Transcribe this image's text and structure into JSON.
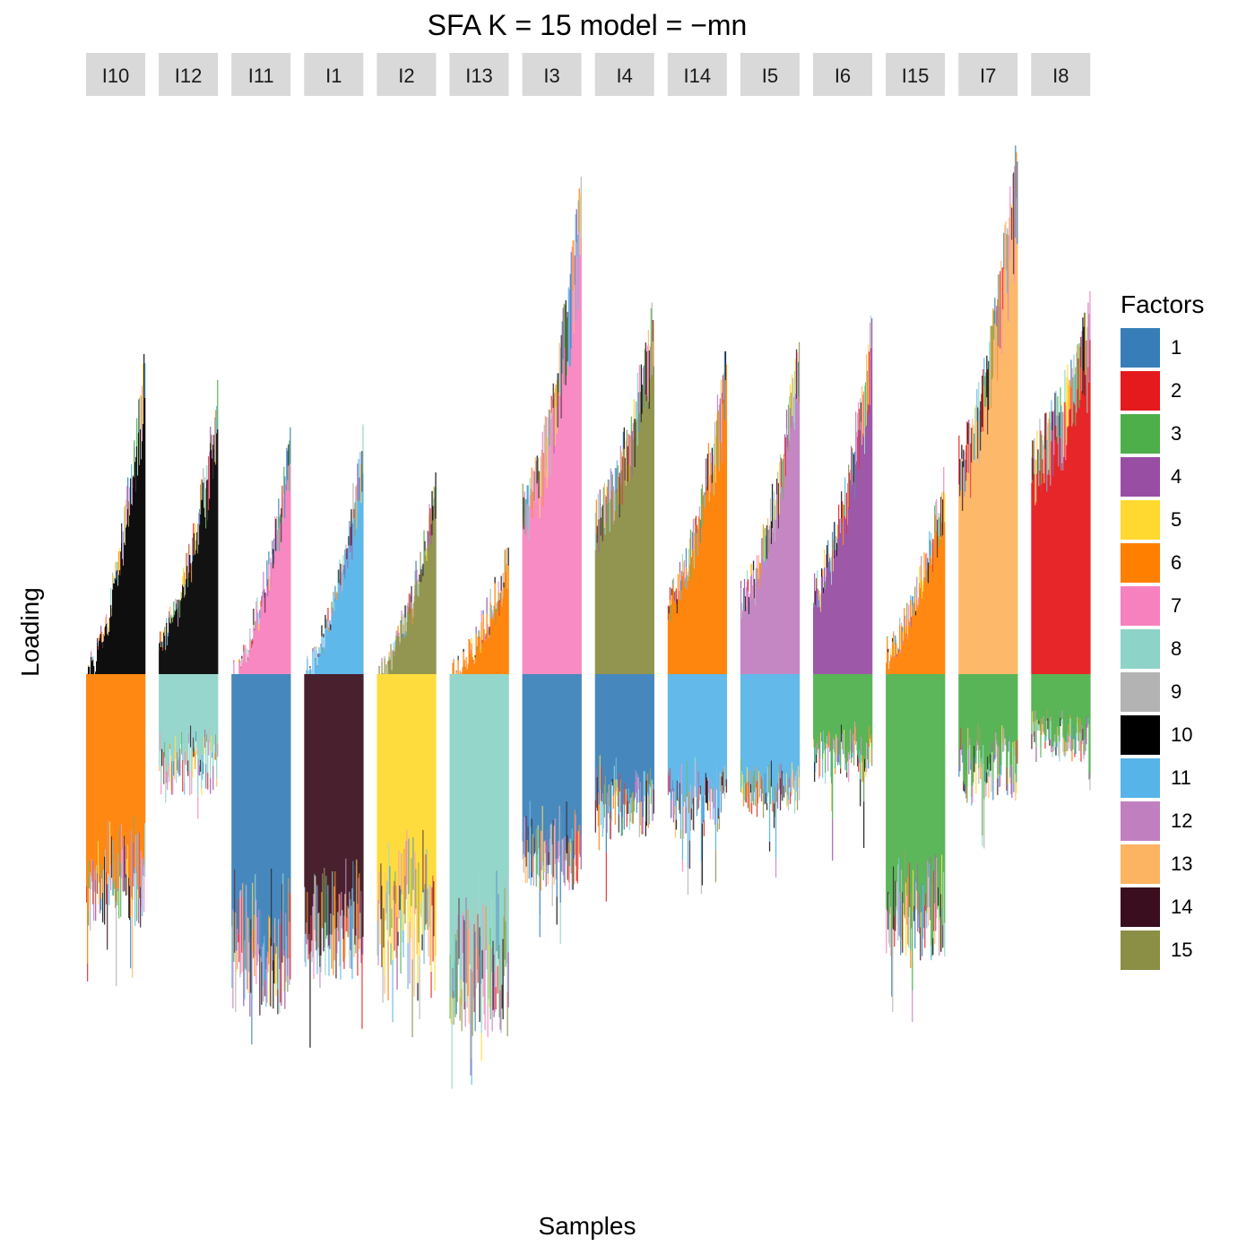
{
  "chart_data": {
    "type": "bar",
    "title": "SFA K = 15 model =  −mn",
    "xlabel": "Samples",
    "ylabel": "Loading",
    "legend": {
      "title": "Factors",
      "placement": "right"
    },
    "panels": [
      "I10",
      "I12",
      "I11",
      "I1",
      "I2",
      "I13",
      "I3",
      "I4",
      "I14",
      "I5",
      "I6",
      "I15",
      "I7",
      "I8"
    ],
    "series": [
      {
        "name": "1",
        "color": "#377EB8"
      },
      {
        "name": "2",
        "color": "#E41A1C"
      },
      {
        "name": "3",
        "color": "#4DAF4A"
      },
      {
        "name": "4",
        "color": "#984EA3"
      },
      {
        "name": "5",
        "color": "#FFD92F"
      },
      {
        "name": "6",
        "color": "#FF7F00"
      },
      {
        "name": "7",
        "color": "#F781BF"
      },
      {
        "name": "8",
        "color": "#8DD3C7"
      },
      {
        "name": "9",
        "color": "#B3B3B3"
      },
      {
        "name": "10",
        "color": "#000000"
      },
      {
        "name": "11",
        "color": "#56B4E9"
      },
      {
        "name": "12",
        "color": "#C080C0"
      },
      {
        "name": "13",
        "color": "#FDB462"
      },
      {
        "name": "14",
        "color": "#3A0E1E"
      },
      {
        "name": "15",
        "color": "#8B8F45"
      }
    ],
    "groups": [
      {
        "panel": "I10",
        "pos_factor": 10,
        "pos_min": 0.0,
        "pos_max": 2.8,
        "neg_factor": 6,
        "neg_min": 1.8,
        "neg_max": 2.3
      },
      {
        "panel": "I12",
        "pos_factor": 10,
        "pos_min": 0.3,
        "pos_max": 2.5,
        "neg_factor": 8,
        "neg_min": 0.6,
        "neg_max": 1.1
      },
      {
        "panel": "I11",
        "pos_factor": 7,
        "pos_min": 0.0,
        "pos_max": 2.1,
        "neg_factor": 1,
        "neg_min": 2.4,
        "neg_max": 3.1
      },
      {
        "panel": "I1",
        "pos_factor": 11,
        "pos_min": 0.0,
        "pos_max": 2.1,
        "neg_factor": 14,
        "neg_min": 2.3,
        "neg_max": 2.8
      },
      {
        "panel": "I2",
        "pos_factor": 15,
        "pos_min": 0.0,
        "pos_max": 1.7,
        "neg_factor": 5,
        "neg_min": 1.9,
        "neg_max": 3.0
      },
      {
        "panel": "I13",
        "pos_factor": 6,
        "pos_min": 0.0,
        "pos_max": 1.1,
        "neg_factor": 8,
        "neg_min": 2.5,
        "neg_max": 3.3
      },
      {
        "panel": "I3",
        "pos_factor": 7,
        "pos_min": 1.6,
        "pos_max": 4.4,
        "neg_factor": 1,
        "neg_min": 1.6,
        "neg_max": 2.0
      },
      {
        "panel": "I4",
        "pos_factor": 15,
        "pos_min": 1.5,
        "pos_max": 3.3,
        "neg_factor": 1,
        "neg_min": 1.0,
        "neg_max": 1.5
      },
      {
        "panel": "I14",
        "pos_factor": 6,
        "pos_min": 0.7,
        "pos_max": 2.9,
        "neg_factor": 11,
        "neg_min": 1.0,
        "neg_max": 1.5
      },
      {
        "panel": "I5",
        "pos_factor": 12,
        "pos_min": 0.7,
        "pos_max": 3.0,
        "neg_factor": 11,
        "neg_min": 1.0,
        "neg_max": 1.3
      },
      {
        "panel": "I6",
        "pos_factor": 4,
        "pos_min": 0.8,
        "pos_max": 3.2,
        "neg_factor": 3,
        "neg_min": 0.6,
        "neg_max": 1.0
      },
      {
        "panel": "I15",
        "pos_factor": 6,
        "pos_min": 0.2,
        "pos_max": 1.8,
        "neg_factor": 3,
        "neg_min": 2.1,
        "neg_max": 2.6
      },
      {
        "panel": "I7",
        "pos_factor": 13,
        "pos_min": 2.0,
        "pos_max": 4.8,
        "neg_factor": 3,
        "neg_min": 0.6,
        "neg_max": 1.2
      },
      {
        "panel": "I8",
        "pos_factor": 2,
        "pos_min": 2.1,
        "pos_max": 3.3,
        "neg_factor": 3,
        "neg_min": 0.4,
        "neg_max": 0.8
      }
    ]
  }
}
